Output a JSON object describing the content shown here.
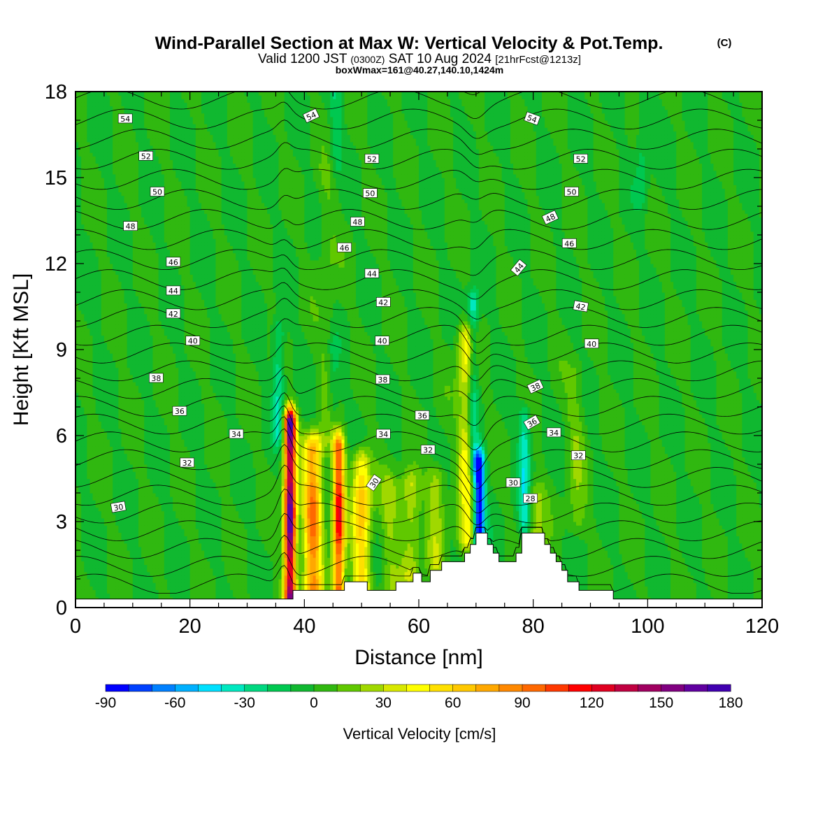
{
  "title": {
    "main": "Wind-Parallel Section at Max W: Vertical Velocity & Pot.Temp.",
    "copyright": "(C)",
    "valid_prefix": "Valid 1200 JST",
    "valid_utc": "(0300Z)",
    "valid_date": "SAT 10 Aug 2024",
    "forecast": "[21hrFcst@1213z]",
    "box_info": "boxWmax=161@40.27,140.10,1424m"
  },
  "chart_data": {
    "type": "heatmap",
    "xlabel": "Distance [nm]",
    "ylabel": "Height [Kft MSL]",
    "xlim": [
      0,
      120
    ],
    "ylim": [
      0,
      18
    ],
    "xticks": [
      0,
      20,
      40,
      60,
      80,
      100,
      120
    ],
    "yticks": [
      0,
      3,
      6,
      9,
      12,
      15,
      18
    ],
    "colorbar": {
      "label": "Vertical Velocity [cm/s]",
      "min": -90,
      "max": 180,
      "step": 10,
      "ticks": [
        -90,
        -60,
        -30,
        0,
        30,
        60,
        90,
        120,
        150,
        180
      ],
      "colors": [
        "#0000ff",
        "#0040ff",
        "#0080ff",
        "#00b0ff",
        "#00e0ff",
        "#00e8c0",
        "#00d880",
        "#00c850",
        "#10b830",
        "#30b810",
        "#60c800",
        "#a0d800",
        "#d8e800",
        "#ffff00",
        "#ffe000",
        "#ffc800",
        "#ffa800",
        "#ff8800",
        "#ff6800",
        "#ff3800",
        "#ff0000",
        "#e00020",
        "#c00040",
        "#a00060",
        "#800080",
        "#6000a0",
        "#4000b0"
      ]
    },
    "background_w": 0,
    "updrafts": [
      {
        "x": 37.5,
        "z0": 0.3,
        "z1": 6.4,
        "w": 161
      },
      {
        "x": 41.5,
        "z0": 0.5,
        "z1": 5.5,
        "w": 85
      },
      {
        "x": 46,
        "z0": 0.5,
        "z1": 5.5,
        "w": 110
      },
      {
        "x": 50,
        "z0": 0.8,
        "z1": 5.0,
        "w": 60
      },
      {
        "x": 55,
        "z0": 0.9,
        "z1": 4.2,
        "w": 20
      },
      {
        "x": 58.5,
        "z0": 1.2,
        "z1": 4.3,
        "w": 30
      },
      {
        "x": 63,
        "z0": 1.6,
        "z1": 4.5,
        "w": 25
      },
      {
        "x": 68.5,
        "z0": 2.5,
        "z1": 9.5,
        "w": 45
      },
      {
        "x": 80.5,
        "z0": 2.5,
        "z1": 3.8,
        "w": 25
      },
      {
        "x": 44,
        "z0": 6.0,
        "z1": 15.0,
        "w": 10
      },
      {
        "x": 87.5,
        "z0": 3.0,
        "z1": 8.0,
        "w": 15
      }
    ],
    "downdrafts": [
      {
        "x": 35.5,
        "z0": 6.2,
        "z1": 9.5,
        "w": -30
      },
      {
        "x": 45,
        "z0": 7.0,
        "z1": 9.0,
        "w": -15
      },
      {
        "x": 70.5,
        "z0": 2.3,
        "z1": 5.0,
        "w": -90
      },
      {
        "x": 69.5,
        "z0": 5.0,
        "z1": 10.5,
        "w": -40
      },
      {
        "x": 78.5,
        "z0": 3.0,
        "z1": 6.5,
        "w": -35
      },
      {
        "x": 45.5,
        "z0": 15.5,
        "z1": 18.0,
        "w": -15
      },
      {
        "x": 99,
        "z0": 14.5,
        "z1": 17.5,
        "w": -15
      }
    ],
    "terrain": {
      "x": [
        0,
        38,
        38,
        47,
        47,
        51,
        51,
        56,
        56,
        59,
        59,
        60.5,
        60.5,
        62,
        62,
        64,
        64,
        66,
        66,
        68,
        68,
        69,
        69,
        70,
        70,
        72,
        72,
        73,
        73,
        74,
        74,
        75,
        75,
        77,
        77,
        78,
        78,
        82,
        82,
        83,
        83,
        84,
        84,
        85,
        85,
        86,
        86,
        88,
        88,
        94,
        94,
        120
      ],
      "z": [
        0.3,
        0.3,
        0.6,
        0.6,
        0.9,
        0.9,
        0.6,
        0.6,
        0.9,
        0.9,
        1.2,
        1.2,
        0.9,
        0.9,
        1.3,
        1.3,
        1.6,
        1.6,
        1.6,
        1.6,
        1.9,
        1.9,
        2.2,
        2.2,
        2.6,
        2.6,
        2.2,
        2.2,
        1.9,
        1.9,
        1.6,
        1.6,
        1.6,
        1.6,
        1.9,
        1.9,
        2.6,
        2.6,
        2.2,
        2.2,
        1.9,
        1.9,
        1.6,
        1.6,
        1.3,
        1.3,
        0.9,
        0.9,
        0.6,
        0.6,
        0.3,
        0.3
      ]
    },
    "isentropes_theta": [
      28,
      29,
      30,
      31,
      32,
      33,
      34,
      35,
      36,
      37,
      38,
      39,
      40,
      41,
      42,
      43,
      44,
      45,
      46,
      47,
      48,
      49,
      50,
      51,
      52,
      53,
      54,
      55
    ],
    "isentrope_labels": [
      {
        "text": "54",
        "x": 8.7,
        "z": 17.05,
        "rot": 0
      },
      {
        "text": "52",
        "x": 12.3,
        "z": 15.75,
        "rot": 0
      },
      {
        "text": "50",
        "x": 14.3,
        "z": 14.5,
        "rot": 0
      },
      {
        "text": "48",
        "x": 9.6,
        "z": 13.3,
        "rot": 0
      },
      {
        "text": "46",
        "x": 17.1,
        "z": 12.05,
        "rot": 0
      },
      {
        "text": "44",
        "x": 17.1,
        "z": 11.05,
        "rot": 0
      },
      {
        "text": "42",
        "x": 17.1,
        "z": 10.25,
        "rot": 0
      },
      {
        "text": "40",
        "x": 20.5,
        "z": 9.3,
        "rot": 0
      },
      {
        "text": "38",
        "x": 14.1,
        "z": 8.0,
        "rot": 0
      },
      {
        "text": "36",
        "x": 18.2,
        "z": 6.85,
        "rot": 0
      },
      {
        "text": "34",
        "x": 28.1,
        "z": 6.05,
        "rot": 0
      },
      {
        "text": "32",
        "x": 19.5,
        "z": 5.05,
        "rot": 0
      },
      {
        "text": "30",
        "x": 7.5,
        "z": 3.5,
        "rot": -10
      },
      {
        "text": "54",
        "x": 41.2,
        "z": 17.15,
        "rot": -25
      },
      {
        "text": "52",
        "x": 51.8,
        "z": 15.65,
        "rot": 0
      },
      {
        "text": "50",
        "x": 51.5,
        "z": 14.45,
        "rot": 0
      },
      {
        "text": "48",
        "x": 49.3,
        "z": 13.45,
        "rot": 0
      },
      {
        "text": "46",
        "x": 47.0,
        "z": 12.55,
        "rot": 0
      },
      {
        "text": "44",
        "x": 51.8,
        "z": 11.65,
        "rot": 0
      },
      {
        "text": "42",
        "x": 53.8,
        "z": 10.65,
        "rot": 0
      },
      {
        "text": "40",
        "x": 53.6,
        "z": 9.3,
        "rot": 0
      },
      {
        "text": "38",
        "x": 53.7,
        "z": 7.95,
        "rot": 0
      },
      {
        "text": "36",
        "x": 60.6,
        "z": 6.7,
        "rot": 0
      },
      {
        "text": "34",
        "x": 53.8,
        "z": 6.05,
        "rot": 0
      },
      {
        "text": "32",
        "x": 61.6,
        "z": 5.5,
        "rot": 0
      },
      {
        "text": "30",
        "x": 52.2,
        "z": 4.35,
        "rot": -55
      },
      {
        "text": "54",
        "x": 79.8,
        "z": 17.05,
        "rot": 20
      },
      {
        "text": "52",
        "x": 88.3,
        "z": 15.65,
        "rot": 0
      },
      {
        "text": "50",
        "x": 86.7,
        "z": 14.5,
        "rot": 0
      },
      {
        "text": "48",
        "x": 83.0,
        "z": 13.6,
        "rot": -25
      },
      {
        "text": "46",
        "x": 86.3,
        "z": 12.7,
        "rot": 0
      },
      {
        "text": "44",
        "x": 77.5,
        "z": 11.85,
        "rot": -50
      },
      {
        "text": "42",
        "x": 88.3,
        "z": 10.5,
        "rot": 10
      },
      {
        "text": "40",
        "x": 90.2,
        "z": 9.2,
        "rot": 0
      },
      {
        "text": "38",
        "x": 80.4,
        "z": 7.7,
        "rot": -25
      },
      {
        "text": "36",
        "x": 79.8,
        "z": 6.45,
        "rot": -30
      },
      {
        "text": "34",
        "x": 83.6,
        "z": 6.1,
        "rot": 0
      },
      {
        "text": "32",
        "x": 87.9,
        "z": 5.3,
        "rot": 0
      },
      {
        "text": "30",
        "x": 76.5,
        "z": 4.35,
        "rot": 0
      },
      {
        "text": "28",
        "x": 79.5,
        "z": 3.8,
        "rot": 0
      }
    ]
  }
}
